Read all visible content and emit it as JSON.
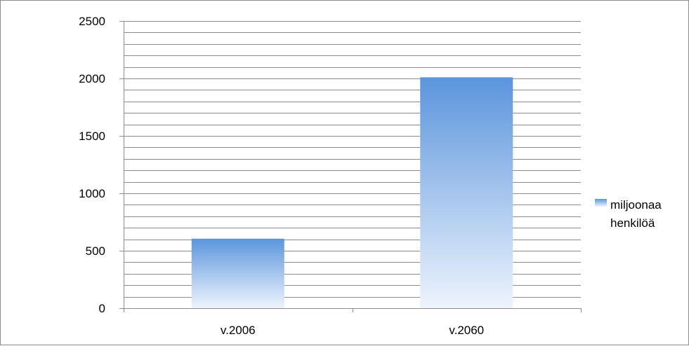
{
  "chart_data": {
    "type": "bar",
    "title": "",
    "xlabel": "",
    "ylabel": "",
    "categories": [
      "v.2006",
      "v.2060"
    ],
    "series": [
      {
        "name": "miljoonaa henkilöä",
        "values": [
          605,
          2010
        ]
      }
    ],
    "ylim": [
      0,
      2500
    ],
    "y_ticks": [
      0,
      500,
      1000,
      1500,
      2000,
      2500
    ],
    "y_minor_step": 100,
    "grid": true,
    "legend": {
      "position": "right",
      "lines": [
        "miljoonaa",
        "henkilöä"
      ]
    },
    "colors": {
      "bar_top": "#5b95dc",
      "bar_bottom": "#eef4fd",
      "grid": "#8c8c8c",
      "axis": "#8c8c8c"
    }
  }
}
